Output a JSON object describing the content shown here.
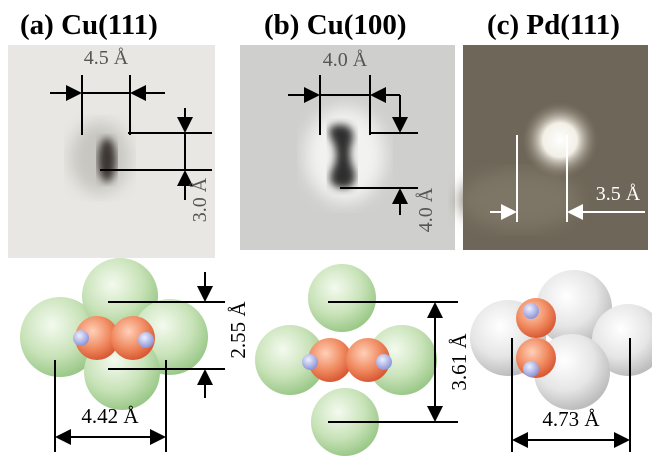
{
  "panels": [
    {
      "title": "(a) Cu(111)",
      "stm_labels": [
        "4.5 Å",
        "3.0 Å"
      ],
      "model_labels": [
        "2.55 Å",
        "4.42 Å"
      ]
    },
    {
      "title": "(b) Cu(100)",
      "stm_labels": [
        "4.0 Å",
        "4.0 Å"
      ],
      "model_labels": [
        "3.61 Å"
      ]
    },
    {
      "title": "(c) Pd(111)",
      "stm_labels": [
        "3.5 Å"
      ],
      "model_labels": [
        "4.73 Å"
      ]
    }
  ]
}
